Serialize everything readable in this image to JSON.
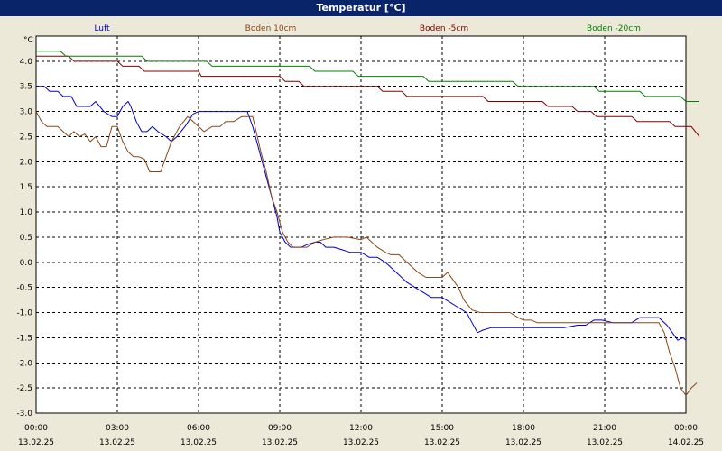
{
  "window": {
    "title": "Temperatur [°C]"
  },
  "chart_data": {
    "type": "line",
    "title": "Temperatur [°C]",
    "ylabel": "°C",
    "xlabel": "",
    "ylim": [
      -3.0,
      4.5
    ],
    "xlim": [
      0,
      24
    ],
    "yticks": [
      "4.0",
      "3.5",
      "3.0",
      "2.5",
      "2.0",
      "1.5",
      "1.0",
      "0.5",
      "0.0",
      "-0.5",
      "-1.0",
      "-1.5",
      "-2.0",
      "-2.5",
      "-3.0"
    ],
    "ytick_values": [
      4.0,
      3.5,
      3.0,
      2.5,
      2.0,
      1.5,
      1.0,
      0.5,
      0.0,
      -0.5,
      -1.0,
      -1.5,
      -2.0,
      -2.5,
      -3.0
    ],
    "xticks": [
      {
        "x": 0,
        "time": "00:00",
        "date": "13.02.25"
      },
      {
        "x": 3,
        "time": "03:00",
        "date": "13.02.25"
      },
      {
        "x": 6,
        "time": "06:00",
        "date": "13.02.25"
      },
      {
        "x": 9,
        "time": "09:00",
        "date": "13.02.25"
      },
      {
        "x": 12,
        "time": "12:00",
        "date": "13.02.25"
      },
      {
        "x": 15,
        "time": "15:00",
        "date": "13.02.25"
      },
      {
        "x": 18,
        "time": "18:00",
        "date": "13.02.25"
      },
      {
        "x": 21,
        "time": "21:00",
        "date": "13.02.25"
      },
      {
        "x": 24,
        "time": "00:00",
        "date": "14.02.25"
      }
    ],
    "grid": true,
    "legend_position": "top",
    "series": [
      {
        "name": "Luft",
        "color": "#0000cc",
        "points": [
          [
            0.0,
            3.5
          ],
          [
            0.3,
            3.5
          ],
          [
            0.5,
            3.4
          ],
          [
            0.8,
            3.4
          ],
          [
            1.0,
            3.3
          ],
          [
            1.3,
            3.3
          ],
          [
            1.5,
            3.1
          ],
          [
            1.8,
            3.1
          ],
          [
            2.0,
            3.1
          ],
          [
            2.2,
            3.2
          ],
          [
            2.5,
            3.0
          ],
          [
            2.8,
            2.9
          ],
          [
            3.0,
            2.9
          ],
          [
            3.2,
            3.1
          ],
          [
            3.4,
            3.2
          ],
          [
            3.5,
            3.1
          ],
          [
            3.7,
            2.8
          ],
          [
            3.9,
            2.6
          ],
          [
            4.1,
            2.6
          ],
          [
            4.3,
            2.7
          ],
          [
            4.5,
            2.6
          ],
          [
            4.8,
            2.5
          ],
          [
            5.0,
            2.4
          ],
          [
            5.2,
            2.5
          ],
          [
            5.5,
            2.7
          ],
          [
            5.8,
            2.95
          ],
          [
            6.0,
            3.0
          ],
          [
            6.5,
            3.0
          ],
          [
            7.0,
            3.0
          ],
          [
            7.5,
            3.0
          ],
          [
            7.8,
            3.0
          ],
          [
            8.0,
            2.7
          ],
          [
            8.3,
            2.1
          ],
          [
            8.5,
            1.7
          ],
          [
            8.7,
            1.3
          ],
          [
            8.9,
            0.9
          ],
          [
            9.0,
            0.6
          ],
          [
            9.2,
            0.4
          ],
          [
            9.4,
            0.3
          ],
          [
            9.6,
            0.3
          ],
          [
            9.8,
            0.3
          ],
          [
            10.0,
            0.35
          ],
          [
            10.3,
            0.4
          ],
          [
            10.5,
            0.4
          ],
          [
            10.7,
            0.3
          ],
          [
            11.0,
            0.3
          ],
          [
            11.3,
            0.25
          ],
          [
            11.6,
            0.2
          ],
          [
            12.0,
            0.2
          ],
          [
            12.3,
            0.1
          ],
          [
            12.6,
            0.1
          ],
          [
            12.9,
            0.0
          ],
          [
            13.1,
            -0.1
          ],
          [
            13.3,
            -0.2
          ],
          [
            13.5,
            -0.3
          ],
          [
            13.7,
            -0.4
          ],
          [
            14.0,
            -0.5
          ],
          [
            14.3,
            -0.6
          ],
          [
            14.6,
            -0.7
          ],
          [
            15.0,
            -0.7
          ],
          [
            15.3,
            -0.8
          ],
          [
            15.6,
            -0.9
          ],
          [
            15.9,
            -1.0
          ],
          [
            16.1,
            -1.2
          ],
          [
            16.3,
            -1.4
          ],
          [
            16.5,
            -1.35
          ],
          [
            16.8,
            -1.3
          ],
          [
            17.5,
            -1.3
          ],
          [
            18.5,
            -1.3
          ],
          [
            19.5,
            -1.3
          ],
          [
            20.0,
            -1.25
          ],
          [
            20.3,
            -1.25
          ],
          [
            20.6,
            -1.15
          ],
          [
            20.9,
            -1.15
          ],
          [
            21.3,
            -1.2
          ],
          [
            22.0,
            -1.2
          ],
          [
            22.3,
            -1.1
          ],
          [
            22.6,
            -1.1
          ],
          [
            23.0,
            -1.1
          ],
          [
            23.3,
            -1.25
          ],
          [
            23.5,
            -1.4
          ],
          [
            23.7,
            -1.55
          ],
          [
            23.9,
            -1.5
          ],
          [
            24.0,
            -1.55
          ]
        ]
      },
      {
        "name": "Boden 10cm",
        "color": "#8b4513",
        "points": [
          [
            0.0,
            3.0
          ],
          [
            0.2,
            2.8
          ],
          [
            0.4,
            2.7
          ],
          [
            0.6,
            2.7
          ],
          [
            0.8,
            2.7
          ],
          [
            1.0,
            2.6
          ],
          [
            1.2,
            2.5
          ],
          [
            1.4,
            2.6
          ],
          [
            1.6,
            2.5
          ],
          [
            1.8,
            2.55
          ],
          [
            2.0,
            2.4
          ],
          [
            2.2,
            2.5
          ],
          [
            2.4,
            2.3
          ],
          [
            2.6,
            2.3
          ],
          [
            2.8,
            2.7
          ],
          [
            3.0,
            2.7
          ],
          [
            3.2,
            2.4
          ],
          [
            3.4,
            2.2
          ],
          [
            3.6,
            2.1
          ],
          [
            3.8,
            2.1
          ],
          [
            4.0,
            2.05
          ],
          [
            4.2,
            1.8
          ],
          [
            4.4,
            1.8
          ],
          [
            4.6,
            1.8
          ],
          [
            4.8,
            2.1
          ],
          [
            5.0,
            2.4
          ],
          [
            5.3,
            2.7
          ],
          [
            5.6,
            2.9
          ],
          [
            5.8,
            2.8
          ],
          [
            6.0,
            2.7
          ],
          [
            6.2,
            2.6
          ],
          [
            6.5,
            2.7
          ],
          [
            6.8,
            2.7
          ],
          [
            7.0,
            2.8
          ],
          [
            7.3,
            2.8
          ],
          [
            7.6,
            2.9
          ],
          [
            8.0,
            2.9
          ],
          [
            8.3,
            2.2
          ],
          [
            8.5,
            1.8
          ],
          [
            8.7,
            1.3
          ],
          [
            8.9,
            1.0
          ],
          [
            9.1,
            0.6
          ],
          [
            9.3,
            0.4
          ],
          [
            9.5,
            0.3
          ],
          [
            9.8,
            0.3
          ],
          [
            10.0,
            0.3
          ],
          [
            10.3,
            0.4
          ],
          [
            10.6,
            0.45
          ],
          [
            11.0,
            0.5
          ],
          [
            11.5,
            0.5
          ],
          [
            12.0,
            0.45
          ],
          [
            12.2,
            0.5
          ],
          [
            12.4,
            0.4
          ],
          [
            12.6,
            0.3
          ],
          [
            12.9,
            0.2
          ],
          [
            13.1,
            0.15
          ],
          [
            13.4,
            0.15
          ],
          [
            13.6,
            0.05
          ],
          [
            13.9,
            -0.1
          ],
          [
            14.1,
            -0.2
          ],
          [
            14.4,
            -0.3
          ],
          [
            14.7,
            -0.3
          ],
          [
            15.0,
            -0.3
          ],
          [
            15.2,
            -0.2
          ],
          [
            15.4,
            -0.35
          ],
          [
            15.6,
            -0.5
          ],
          [
            15.8,
            -0.75
          ],
          [
            16.1,
            -0.95
          ],
          [
            16.4,
            -1.0
          ],
          [
            17.0,
            -1.0
          ],
          [
            17.5,
            -1.0
          ],
          [
            17.8,
            -1.1
          ],
          [
            18.0,
            -1.15
          ],
          [
            18.3,
            -1.15
          ],
          [
            18.5,
            -1.2
          ],
          [
            19.0,
            -1.2
          ],
          [
            19.5,
            -1.2
          ],
          [
            20.0,
            -1.2
          ],
          [
            20.5,
            -1.2
          ],
          [
            21.0,
            -1.2
          ],
          [
            22.0,
            -1.2
          ],
          [
            23.0,
            -1.2
          ],
          [
            23.2,
            -1.4
          ],
          [
            23.4,
            -1.8
          ],
          [
            23.6,
            -2.1
          ],
          [
            23.8,
            -2.5
          ],
          [
            24.0,
            -2.65
          ],
          [
            24.2,
            -2.5
          ],
          [
            24.4,
            -2.4
          ]
        ]
      },
      {
        "name": "Boden -5cm",
        "color": "#800000",
        "points": [
          [
            0.0,
            4.1
          ],
          [
            1.2,
            4.1
          ],
          [
            1.4,
            4.0
          ],
          [
            3.0,
            4.0
          ],
          [
            3.2,
            3.9
          ],
          [
            3.8,
            3.9
          ],
          [
            4.0,
            3.8
          ],
          [
            6.0,
            3.8
          ],
          [
            6.1,
            3.7
          ],
          [
            9.0,
            3.7
          ],
          [
            9.2,
            3.6
          ],
          [
            9.7,
            3.6
          ],
          [
            9.9,
            3.5
          ],
          [
            12.6,
            3.5
          ],
          [
            12.8,
            3.4
          ],
          [
            13.5,
            3.4
          ],
          [
            13.7,
            3.3
          ],
          [
            16.5,
            3.3
          ],
          [
            16.7,
            3.2
          ],
          [
            18.7,
            3.2
          ],
          [
            18.9,
            3.1
          ],
          [
            19.8,
            3.1
          ],
          [
            20.0,
            3.0
          ],
          [
            20.5,
            3.0
          ],
          [
            20.7,
            2.9
          ],
          [
            22.0,
            2.9
          ],
          [
            22.2,
            2.8
          ],
          [
            23.4,
            2.8
          ],
          [
            23.6,
            2.7
          ],
          [
            24.2,
            2.7
          ],
          [
            24.5,
            2.5
          ]
        ]
      },
      {
        "name": "Boden -20cm",
        "color": "#008000",
        "points": [
          [
            0.0,
            4.2
          ],
          [
            0.9,
            4.2
          ],
          [
            1.1,
            4.1
          ],
          [
            3.9,
            4.1
          ],
          [
            4.1,
            4.0
          ],
          [
            6.3,
            4.0
          ],
          [
            6.5,
            3.9
          ],
          [
            10.1,
            3.9
          ],
          [
            10.3,
            3.8
          ],
          [
            11.7,
            3.8
          ],
          [
            11.9,
            3.7
          ],
          [
            14.3,
            3.7
          ],
          [
            14.5,
            3.6
          ],
          [
            17.6,
            3.6
          ],
          [
            17.8,
            3.5
          ],
          [
            20.6,
            3.5
          ],
          [
            20.8,
            3.4
          ],
          [
            22.3,
            3.4
          ],
          [
            22.5,
            3.3
          ],
          [
            23.8,
            3.3
          ],
          [
            24.0,
            3.2
          ],
          [
            24.5,
            3.2
          ]
        ]
      }
    ]
  }
}
